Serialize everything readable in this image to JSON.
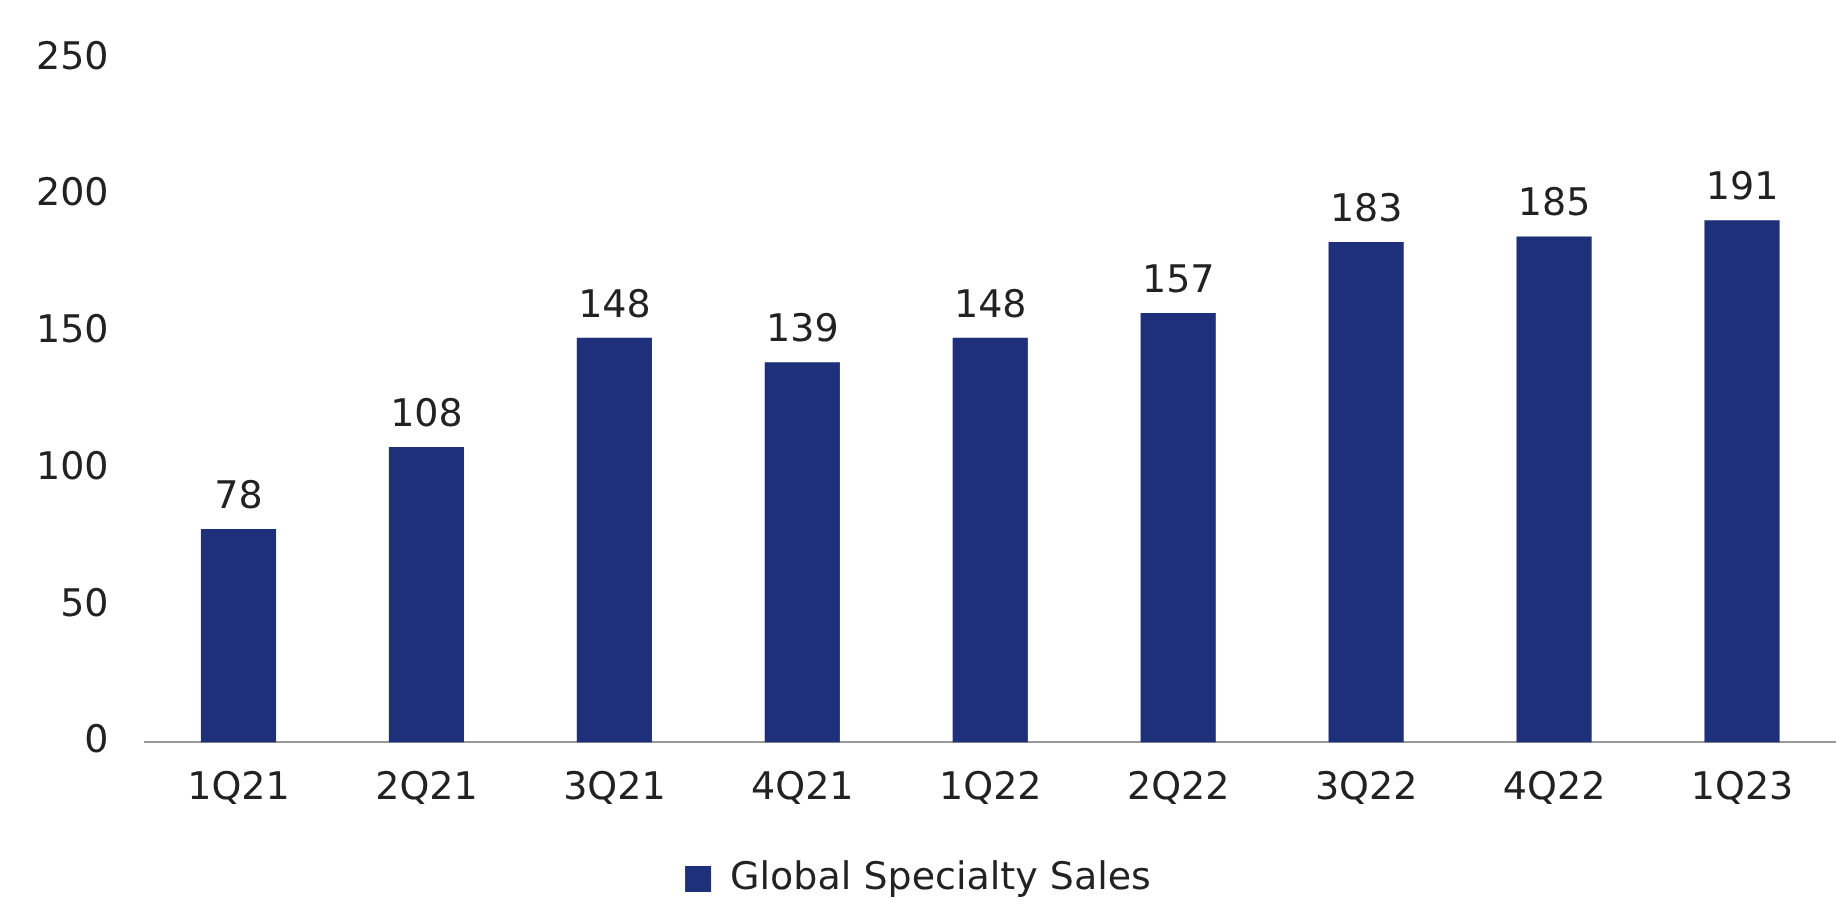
{
  "chart_data": {
    "type": "bar",
    "categories": [
      "1Q21",
      "2Q21",
      "3Q21",
      "4Q21",
      "1Q22",
      "2Q22",
      "3Q22",
      "4Q22",
      "1Q23"
    ],
    "series": [
      {
        "name": "Global Specialty Sales",
        "color": "#1f307a",
        "values": [
          78,
          108,
          148,
          139,
          148,
          157,
          183,
          185,
          191
        ]
      }
    ],
    "ylim": [
      0,
      250
    ],
    "yticks": [
      0,
      50,
      100,
      150,
      200,
      250
    ],
    "grid": false,
    "legend": "bottom",
    "data_labels": true
  }
}
